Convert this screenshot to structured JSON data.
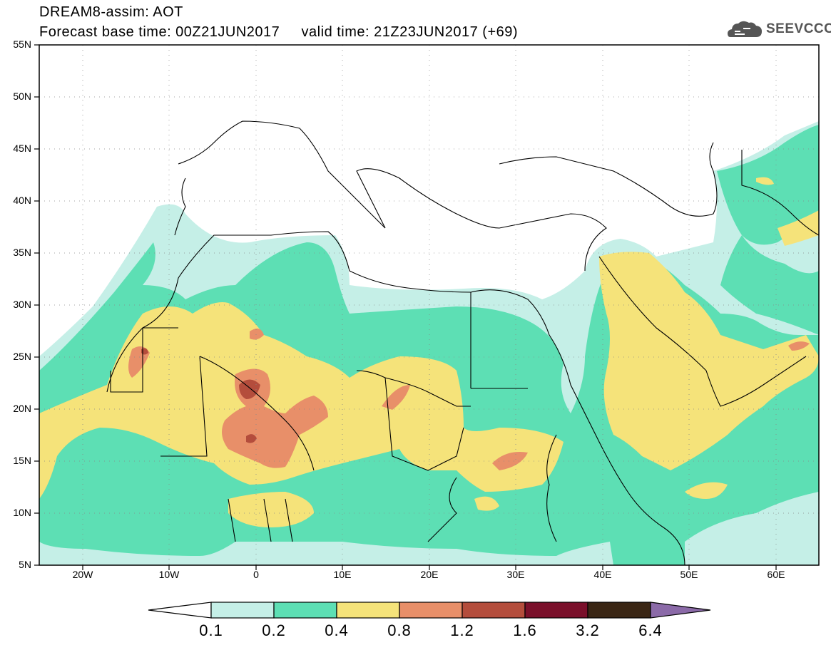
{
  "header": {
    "title_line1": "DREAM8-assim: AOT",
    "title_line2": "Forecast base time: 00Z21JUN2017     valid time: 21Z23JUN2017 (+69)",
    "logo_text": "SEEVCCC",
    "logo_icon": "cloud-icon"
  },
  "map": {
    "lat_labels": [
      "55N",
      "50N",
      "45N",
      "40N",
      "35N",
      "30N",
      "25N",
      "20N",
      "15N",
      "10N",
      "5N"
    ],
    "lon_labels": [
      "20W",
      "10W",
      "0",
      "10E",
      "20E",
      "30E",
      "40E",
      "50E",
      "60E"
    ],
    "colors": {
      "very_light": "#c5efe7",
      "green": "#5ddfb4",
      "yellow": "#f5e37a",
      "orange": "#e88f69",
      "dark_orange": "#b44d3c",
      "border": "#000000"
    }
  },
  "colorbar": {
    "labels": [
      "0.1",
      "0.2",
      "0.4",
      "0.8",
      "1.2",
      "1.6",
      "3.2",
      "6.4"
    ],
    "colors": [
      "#ffffff",
      "#c5efe7",
      "#5ddfb4",
      "#f5e37a",
      "#e88f69",
      "#b44d3c",
      "#7a0f2a",
      "#3a2614",
      "#8b6aa8"
    ]
  }
}
